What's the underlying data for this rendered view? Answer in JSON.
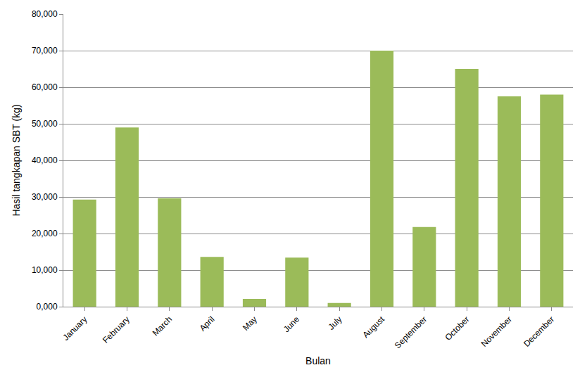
{
  "chart_data": {
    "type": "bar",
    "x_label": "Bulan",
    "y_label": "Hasil tangkapan SBT (kg)",
    "categories": [
      "January",
      "February",
      "March",
      "April",
      "May",
      "June",
      "July",
      "August",
      "September",
      "October",
      "November",
      "December"
    ],
    "values": [
      29300,
      49000,
      29600,
      13600,
      2100,
      13400,
      1000,
      70000,
      21800,
      65000,
      57500,
      58000
    ],
    "color": "#9bbb59",
    "ylim": [
      0,
      80000
    ],
    "yticks": [
      {
        "value": 0,
        "label": "0,000"
      },
      {
        "value": 10000,
        "label": "10,000"
      },
      {
        "value": 20000,
        "label": "20,000"
      },
      {
        "value": 30000,
        "label": "30,000"
      },
      {
        "value": 40000,
        "label": "40,000"
      },
      {
        "value": 50000,
        "label": "50,000"
      },
      {
        "value": 60000,
        "label": "60,000"
      },
      {
        "value": 70000,
        "label": "70,000"
      },
      {
        "value": 80000,
        "label": "80,000"
      }
    ],
    "grid": true
  }
}
